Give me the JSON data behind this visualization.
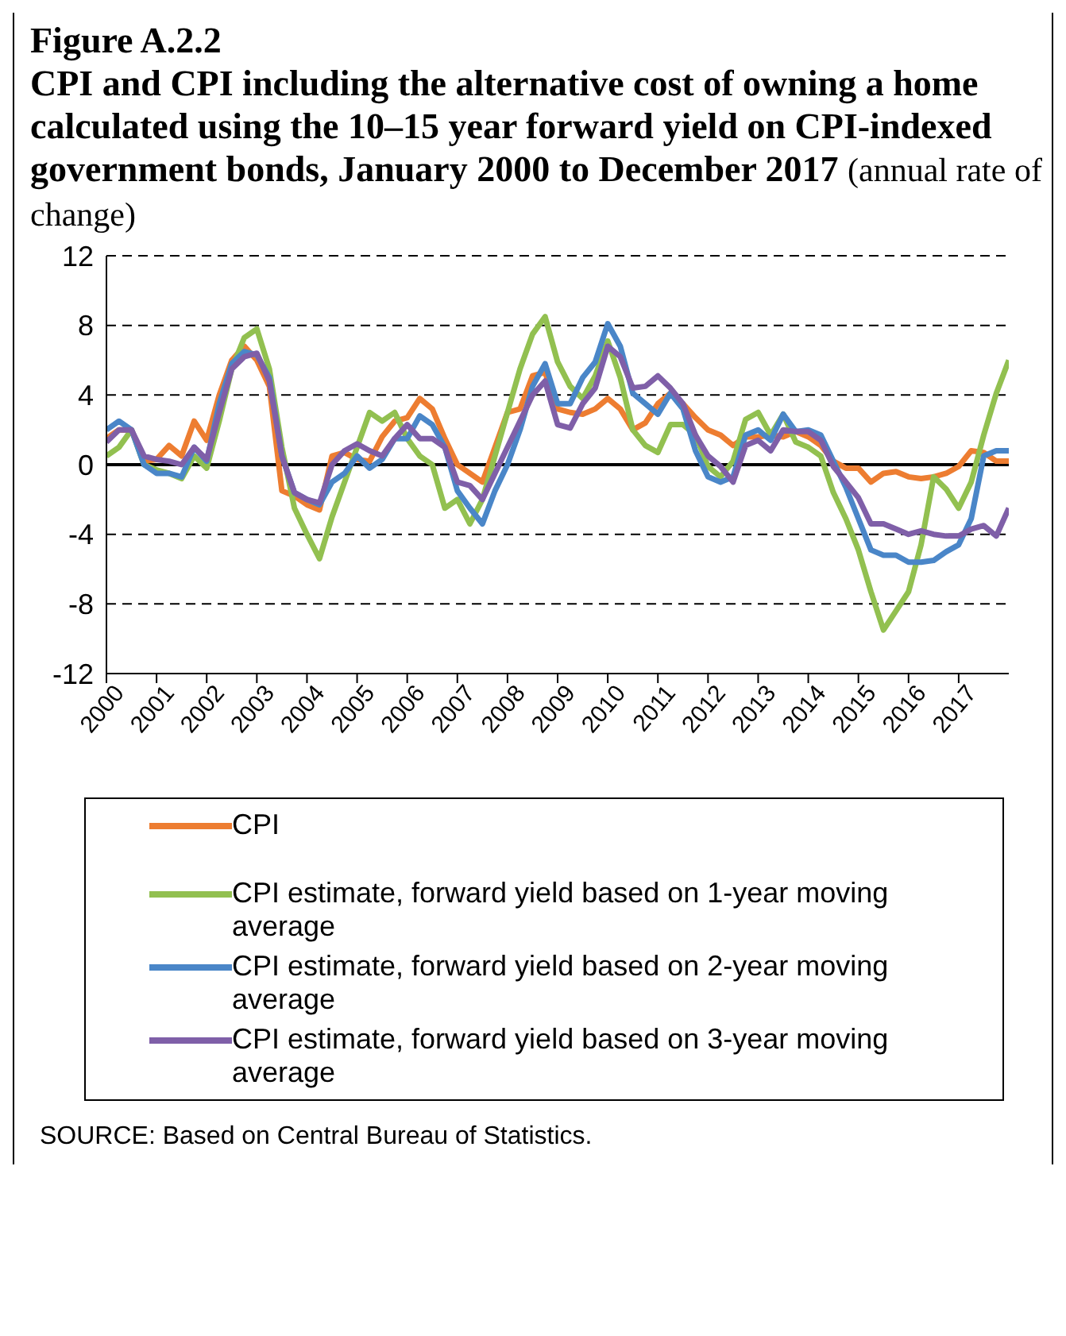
{
  "chart_data": {
    "type": "line",
    "title": "Figure A.2.2",
    "subtitle": "CPI and CPI including the alternative cost of owning a home calculated using the 10–15 year forward yield on CPI-indexed government bonds, January 2000 to December 2017",
    "ylabel": "(annual rate of change)",
    "x": [
      2000,
      2000.25,
      2000.5,
      2000.75,
      2001,
      2001.25,
      2001.5,
      2001.75,
      2002,
      2002.25,
      2002.5,
      2002.75,
      2003,
      2003.25,
      2003.5,
      2003.75,
      2004,
      2004.25,
      2004.5,
      2004.75,
      2005,
      2005.25,
      2005.5,
      2005.75,
      2006,
      2006.25,
      2006.5,
      2006.75,
      2007,
      2007.25,
      2007.5,
      2007.75,
      2008,
      2008.25,
      2008.5,
      2008.75,
      2009,
      2009.25,
      2009.5,
      2009.75,
      2010,
      2010.25,
      2010.5,
      2010.75,
      2011,
      2011.25,
      2011.5,
      2011.75,
      2012,
      2012.25,
      2012.5,
      2012.75,
      2013,
      2013.25,
      2013.5,
      2013.75,
      2014,
      2014.25,
      2014.5,
      2014.75,
      2015,
      2015.25,
      2015.5,
      2015.75,
      2016,
      2016.25,
      2016.5,
      2016.75,
      2017,
      2017.25,
      2017.5,
      2017.75,
      2018
    ],
    "series": [
      {
        "name": "CPI",
        "color": "#ed7d31",
        "values": [
          1.5,
          2.0,
          2.0,
          0.2,
          0.3,
          1.1,
          0.5,
          2.5,
          1.4,
          4.0,
          6.0,
          6.8,
          6.0,
          4.5,
          -1.5,
          -1.8,
          -2.3,
          -2.6,
          0.5,
          0.7,
          0.3,
          0.2,
          1.6,
          2.5,
          2.7,
          3.8,
          3.2,
          1.5,
          0,
          -0.5,
          -1.0,
          1.0,
          3.0,
          3.2,
          5.1,
          5.3,
          3.2,
          3.0,
          2.9,
          3.2,
          3.8,
          3.2,
          2.0,
          2.4,
          3.5,
          4.1,
          3.5,
          2.7,
          2.0,
          1.7,
          1.1,
          1.6,
          1.6,
          1.7,
          1.6,
          1.9,
          1.6,
          1.1,
          0.2,
          -0.2,
          -0.2,
          -1.0,
          -0.5,
          -0.4,
          -0.7,
          -0.8,
          -0.7,
          -0.5,
          -0.1,
          0.8,
          0.7,
          0.2,
          0.2
        ]
      },
      {
        "name": "CPI estimate, forward yield based on 1-year moving average",
        "color": "#92c050",
        "values": [
          0.5,
          1.0,
          2.0,
          0,
          -0.3,
          -0.5,
          -0.8,
          0.5,
          -0.2,
          2.5,
          5.5,
          7.3,
          7.8,
          5.5,
          1.0,
          -2.5,
          -4.0,
          -5.4,
          -3.0,
          -1.0,
          1.0,
          3.0,
          2.5,
          3.0,
          1.5,
          0.5,
          0,
          -2.5,
          -2.0,
          -3.4,
          -2.0,
          0.5,
          3.0,
          5.5,
          7.5,
          8.5,
          5.9,
          4.5,
          3.8,
          5.1,
          7.1,
          5.0,
          2.0,
          1.1,
          0.7,
          2.3,
          2.3,
          1.7,
          -0.1,
          -0.7,
          0.2,
          2.6,
          3.0,
          1.7,
          2.9,
          1.3,
          1.0,
          0.5,
          -1.6,
          -3.1,
          -4.9,
          -7.3,
          -9.5,
          -8.4,
          -7.3,
          -4.6,
          -0.7,
          -1.4,
          -2.5,
          -1.0,
          1.7,
          4.1,
          6.0
        ]
      },
      {
        "name": "CPI estimate, forward yield based on 2-year moving average",
        "color": "#4a86c8",
        "values": [
          2.0,
          2.5,
          2.0,
          0,
          -0.5,
          -0.5,
          -0.7,
          1.0,
          0.2,
          3.5,
          5.8,
          6.5,
          6.3,
          5.0,
          0.5,
          -1.6,
          -2.0,
          -2.3,
          -1.0,
          -0.5,
          0.5,
          -0.2,
          0.3,
          1.5,
          1.5,
          2.8,
          2.3,
          1.0,
          -1.5,
          -2.5,
          -3.4,
          -1.5,
          0,
          2.0,
          4.5,
          5.8,
          3.5,
          3.5,
          5.0,
          5.9,
          8.1,
          6.8,
          4.1,
          3.5,
          2.9,
          4.1,
          3.2,
          0.8,
          -0.7,
          -1.0,
          -0.7,
          1.7,
          2.0,
          1.4,
          2.9,
          1.9,
          2.0,
          1.7,
          0.2,
          -1.3,
          -3.1,
          -4.9,
          -5.2,
          -5.2,
          -5.6,
          -5.6,
          -5.5,
          -5.0,
          -4.6,
          -3.1,
          0.5,
          0.8,
          0.8
        ]
      },
      {
        "name": "CPI estimate, forward yield based on 3-year moving average",
        "color": "#7f5fa8",
        "values": [
          1.3,
          2.0,
          2.0,
          0.5,
          0.3,
          0.2,
          0,
          1.0,
          0.3,
          3.0,
          5.5,
          6.2,
          6.4,
          4.8,
          0.5,
          -1.6,
          -2.0,
          -2.2,
          0,
          0.8,
          1.2,
          0.8,
          0.5,
          1.5,
          2.3,
          1.5,
          1.5,
          1.0,
          -1.0,
          -1.2,
          -2.0,
          -0.5,
          1.0,
          2.5,
          4.0,
          4.8,
          2.3,
          2.1,
          3.5,
          4.4,
          6.8,
          6.2,
          4.4,
          4.5,
          5.1,
          4.4,
          3.5,
          1.7,
          0.5,
          -0.1,
          -1.0,
          1.1,
          1.4,
          0.8,
          2.0,
          1.9,
          1.9,
          1.4,
          -0.1,
          -1.0,
          -1.9,
          -3.4,
          -3.4,
          -3.7,
          -4.0,
          -3.8,
          -4.0,
          -4.1,
          -4.1,
          -3.7,
          -3.5,
          -4.1,
          -2.5
        ]
      }
    ],
    "xlim": [
      2000,
      2018
    ],
    "xticks": [
      2000,
      2001,
      2002,
      2003,
      2004,
      2005,
      2006,
      2007,
      2008,
      2009,
      2010,
      2011,
      2012,
      2013,
      2014,
      2015,
      2016,
      2017
    ],
    "ylim": [
      -12,
      12
    ],
    "yticks": [
      -12,
      -8,
      -4,
      0,
      4,
      8,
      12
    ],
    "grid": "y",
    "legend": "bottom",
    "marker": "none",
    "line_style": "solid",
    "ref_lines": [
      {
        "axis": "y",
        "value": 0,
        "color": "#000000",
        "line_style": "solid"
      }
    ],
    "annotations": [
      "SOURCE: Based on Central Bureau of Statistics."
    ]
  }
}
